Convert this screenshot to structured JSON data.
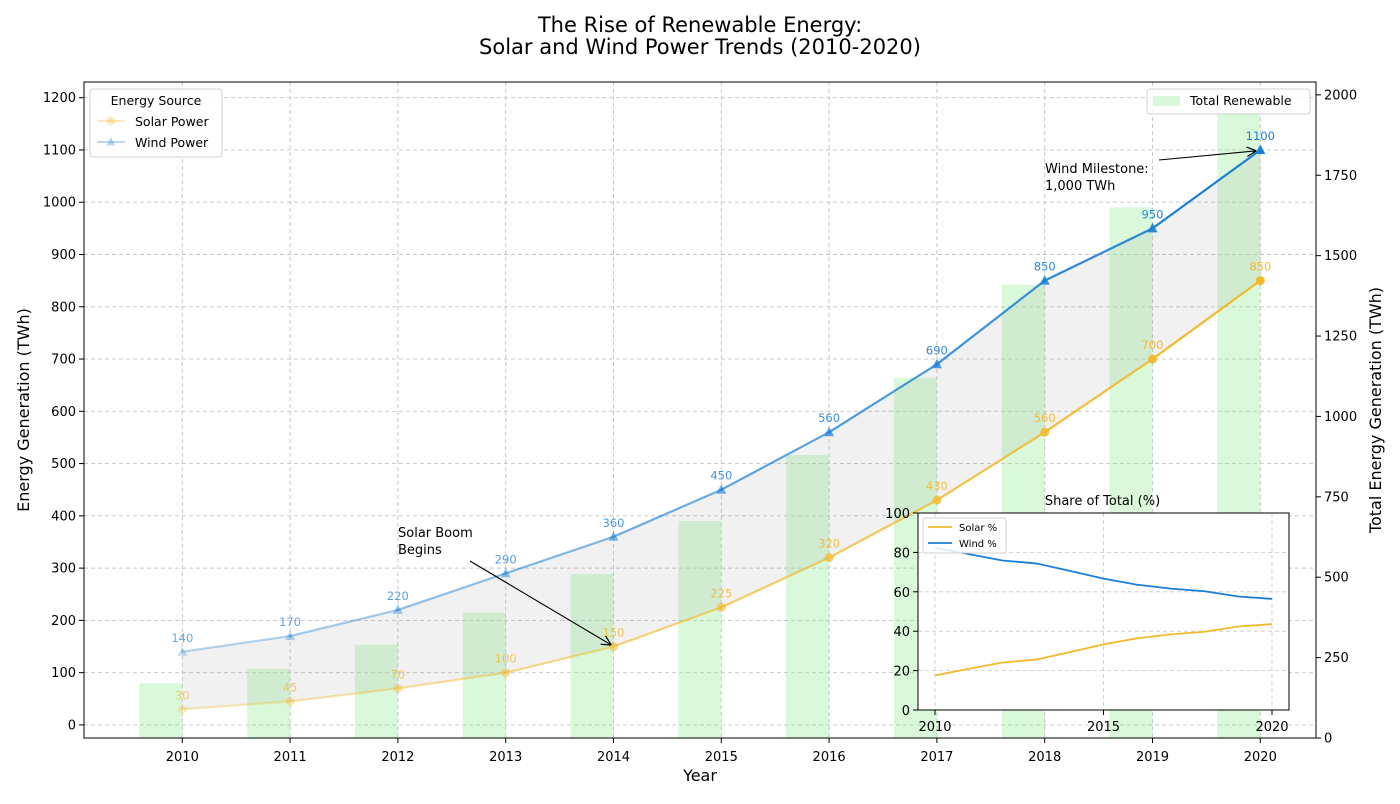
{
  "chart_data": [
    {
      "type": "line",
      "title": "The Rise of Renewable Energy:",
      "subtitle": "Solar and Wind Power Trends (2010-2020)",
      "xlabel": "Year",
      "ylabel": "Energy Generation (TWh)",
      "y2label": "Total Energy Generation (TWh)",
      "x": [
        2010,
        2011,
        2012,
        2013,
        2014,
        2015,
        2016,
        2017,
        2018,
        2019,
        2020
      ],
      "ylim": [
        -25,
        1230
      ],
      "y_ticks": [
        0,
        100,
        200,
        300,
        400,
        500,
        600,
        700,
        800,
        900,
        1000,
        1100,
        1200
      ],
      "y2lim": [
        0,
        2040
      ],
      "y2_ticks": [
        0,
        250,
        500,
        750,
        1000,
        1250,
        1500,
        1750,
        2000
      ],
      "grid": true,
      "series": [
        {
          "name": "Solar Power",
          "axis": "left",
          "marker": "circle",
          "color": "#f2b92c",
          "values": [
            30,
            45,
            70,
            100,
            150,
            225,
            320,
            430,
            560,
            700,
            850
          ]
        },
        {
          "name": "Wind Power",
          "axis": "left",
          "marker": "triangle",
          "color": "#1a7fd6",
          "values": [
            140,
            170,
            220,
            290,
            360,
            450,
            560,
            690,
            850,
            950,
            1100
          ]
        },
        {
          "name": "Total Renewable",
          "axis": "right",
          "kind": "bar",
          "color": "#90ee90",
          "values": [
            170,
            215,
            290,
            390,
            510,
            675,
            880,
            1120,
            1410,
            1650,
            1950
          ]
        }
      ],
      "legend": {
        "title": "Energy Source",
        "placement": "top-left"
      },
      "legend2": {
        "placement": "top-right"
      },
      "annotations": [
        {
          "text": [
            "Solar Boom",
            "Begins"
          ],
          "x": 2014,
          "y": 150,
          "series": "Solar Power"
        },
        {
          "text": [
            "Wind Milestone:",
            "1,000 TWh"
          ],
          "x": 2020,
          "y": 1100,
          "series": "Wind Power"
        }
      ]
    },
    {
      "type": "line",
      "title": "Share of Total (%)",
      "x": [
        2010,
        2011,
        2012,
        2013,
        2014,
        2015,
        2016,
        2017,
        2018,
        2019,
        2020
      ],
      "x_ticks": [
        2010,
        2015,
        2020
      ],
      "ylim": [
        0,
        100
      ],
      "y_ticks": [
        0,
        20,
        40,
        60,
        80,
        100
      ],
      "grid": true,
      "legend": {
        "placement": "top-left"
      },
      "series": [
        {
          "name": "Solar %",
          "color": "#f2b92c",
          "values": [
            17.6,
            20.9,
            24.1,
            25.6,
            29.4,
            33.3,
            36.4,
            38.4,
            39.7,
            42.4,
            43.6
          ]
        },
        {
          "name": "Wind %",
          "color": "#1a7fd6",
          "values": [
            82.4,
            79.1,
            75.9,
            74.4,
            70.6,
            66.7,
            63.6,
            61.6,
            60.3,
            57.6,
            56.4
          ]
        }
      ]
    }
  ]
}
